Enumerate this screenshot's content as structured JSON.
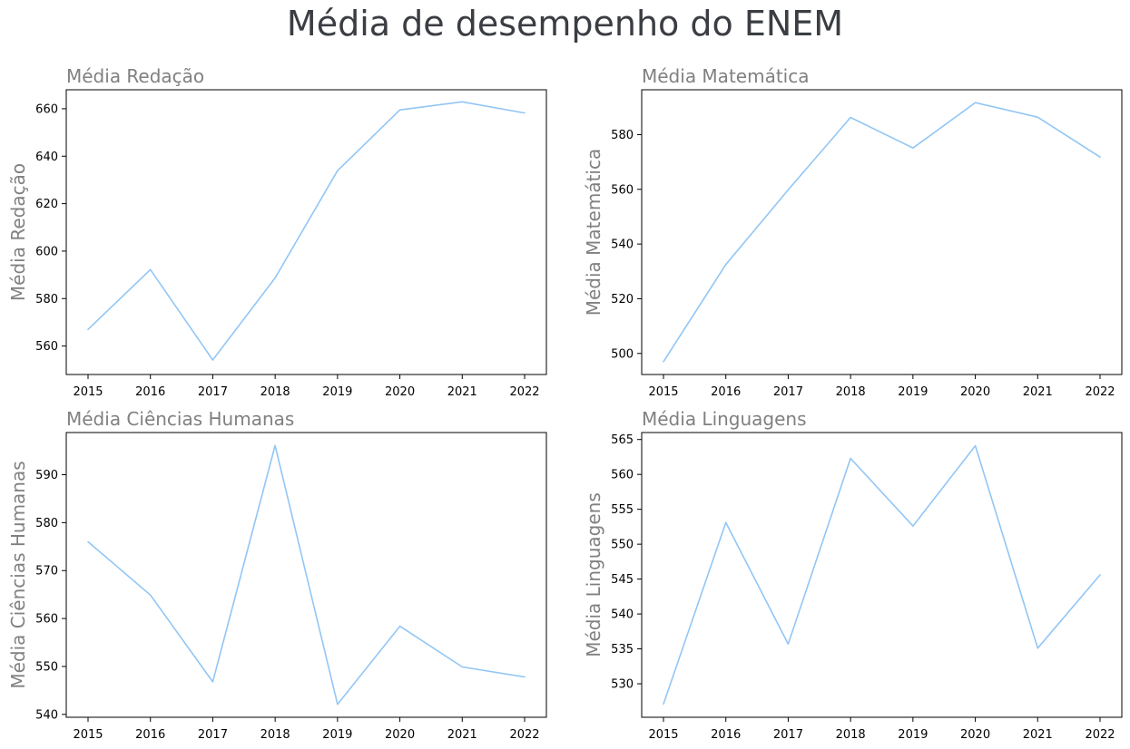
{
  "title": "Média de desempenho do ENEM",
  "colors": {
    "line": "#92c6f5",
    "title": "#3a3d42",
    "subtitle": "#808080"
  },
  "chart_data": [
    {
      "type": "line",
      "title": "Média Redação",
      "ylabel": "Média Redação",
      "xlabel": "",
      "x": [
        2015,
        2016,
        2017,
        2018,
        2019,
        2020,
        2021,
        2022
      ],
      "values": [
        567,
        592.2,
        554.1,
        588.7,
        633.9,
        659.5,
        662.9,
        658.2
      ],
      "ylim": [
        548,
        668
      ],
      "yticks": [
        560,
        580,
        600,
        620,
        640,
        660
      ]
    },
    {
      "type": "line",
      "title": "Média Matemática",
      "ylabel": "Média Matemática",
      "xlabel": "",
      "x": [
        2015,
        2016,
        2017,
        2018,
        2019,
        2020,
        2021,
        2022
      ],
      "values": [
        497,
        532.5,
        559.8,
        586.3,
        575.1,
        591.7,
        586.4,
        571.8
      ],
      "ylim": [
        492.3,
        596.4
      ],
      "yticks": [
        500,
        520,
        540,
        560,
        580
      ]
    },
    {
      "type": "line",
      "title": "Média Ciências Humanas",
      "ylabel": "Média Ciências Humanas",
      "xlabel": "",
      "x": [
        2015,
        2016,
        2017,
        2018,
        2019,
        2020,
        2021,
        2022
      ],
      "values": [
        576,
        564.9,
        546.8,
        596.1,
        542.1,
        558.4,
        549.9,
        547.8
      ],
      "ylim": [
        539.4,
        598.8
      ],
      "yticks": [
        540,
        550,
        560,
        570,
        580,
        590
      ]
    },
    {
      "type": "line",
      "title": "Média Linguagens",
      "ylabel": "Média Linguagens",
      "xlabel": "",
      "x": [
        2015,
        2016,
        2017,
        2018,
        2019,
        2020,
        2021,
        2022
      ],
      "values": [
        527.1,
        553.1,
        535.7,
        562.3,
        552.6,
        564.1,
        535.1,
        545.6
      ],
      "ylim": [
        525.2,
        566.0
      ],
      "yticks": [
        530,
        535,
        540,
        545,
        550,
        555,
        560,
        565
      ]
    }
  ]
}
